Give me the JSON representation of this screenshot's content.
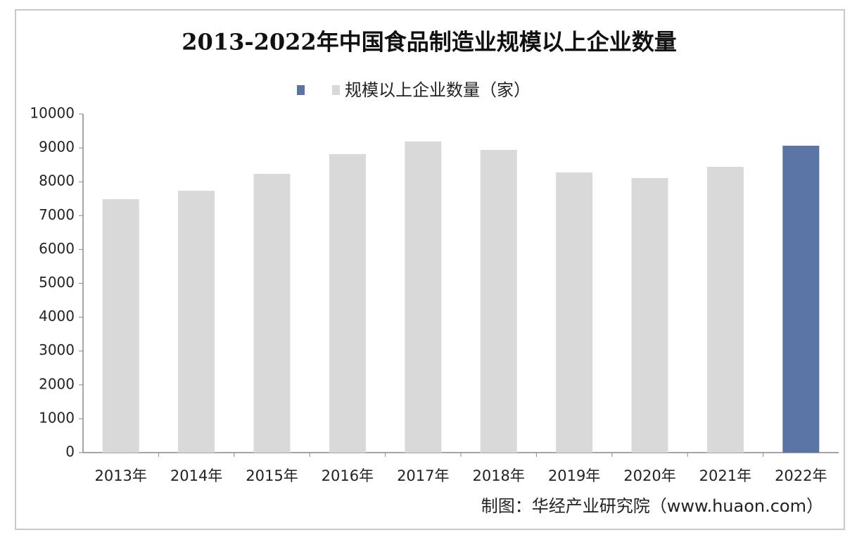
{
  "chart_data": {
    "type": "bar",
    "title": "2013-2022年中国食品制造业规模以上企业数量",
    "categories": [
      "2013年",
      "2014年",
      "2015年",
      "2016年",
      "2017年",
      "2018年",
      "2019年",
      "2020年",
      "2021年",
      "2022年"
    ],
    "series": [
      {
        "name": "规模以上企业数量（家）",
        "colors": [
          "#d9d9d9",
          "#d9d9d9",
          "#d9d9d9",
          "#d9d9d9",
          "#d9d9d9",
          "#d9d9d9",
          "#d9d9d9",
          "#d9d9d9",
          "#d9d9d9",
          "#5b74a6"
        ],
        "values": [
          7484,
          7734,
          8233,
          8815,
          9189,
          8940,
          8274,
          8108,
          8441,
          9064
        ]
      }
    ],
    "ylim": [
      0,
      10000
    ],
    "yticks": [
      0,
      1000,
      2000,
      3000,
      4000,
      5000,
      6000,
      7000,
      8000,
      9000,
      10000
    ],
    "grid": false,
    "source": "制图：华经产业研究院（www.huaon.com）"
  }
}
